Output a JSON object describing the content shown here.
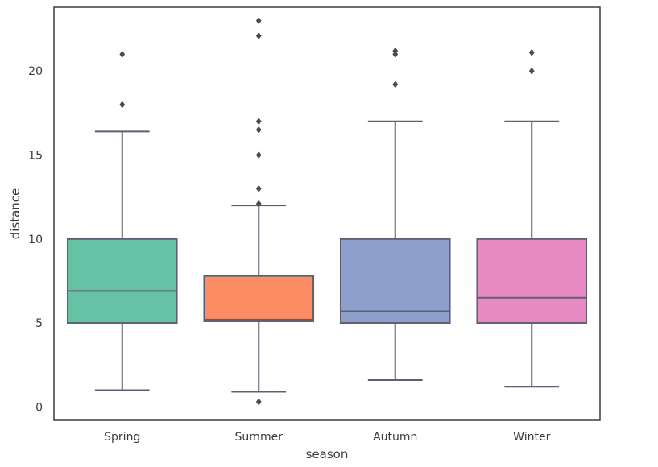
{
  "chart_data": {
    "type": "box",
    "xlabel": "season",
    "ylabel": "distance",
    "ylim": [
      -0.8,
      23.8
    ],
    "yticks": [
      0,
      5,
      10,
      15,
      20
    ],
    "grid": false,
    "categories": [
      "Spring",
      "Summer",
      "Autumn",
      "Winter"
    ],
    "boxes": [
      {
        "category": "Spring",
        "color": "#66c2a5",
        "whisker_low": 1.0,
        "q1": 5.0,
        "median": 6.9,
        "q3": 10.0,
        "whisker_high": 16.4,
        "outliers": [
          18.0,
          21.0
        ]
      },
      {
        "category": "Summer",
        "color": "#fc8d62",
        "whisker_low": 0.9,
        "q1": 5.1,
        "median": 5.2,
        "q3": 7.8,
        "whisker_high": 12.0,
        "outliers": [
          0.3,
          12.1,
          13.0,
          15.0,
          16.5,
          17.0,
          22.1,
          23.0
        ]
      },
      {
        "category": "Autumn",
        "color": "#8da0cb",
        "whisker_low": 1.6,
        "q1": 5.0,
        "median": 5.7,
        "q3": 10.0,
        "whisker_high": 17.0,
        "outliers": [
          19.2,
          21.0,
          21.2
        ]
      },
      {
        "category": "Winter",
        "color": "#e78ac3",
        "whisker_low": 1.2,
        "q1": 5.0,
        "median": 6.5,
        "q3": 10.0,
        "whisker_high": 17.0,
        "outliers": [
          20.0,
          21.1
        ]
      }
    ]
  }
}
